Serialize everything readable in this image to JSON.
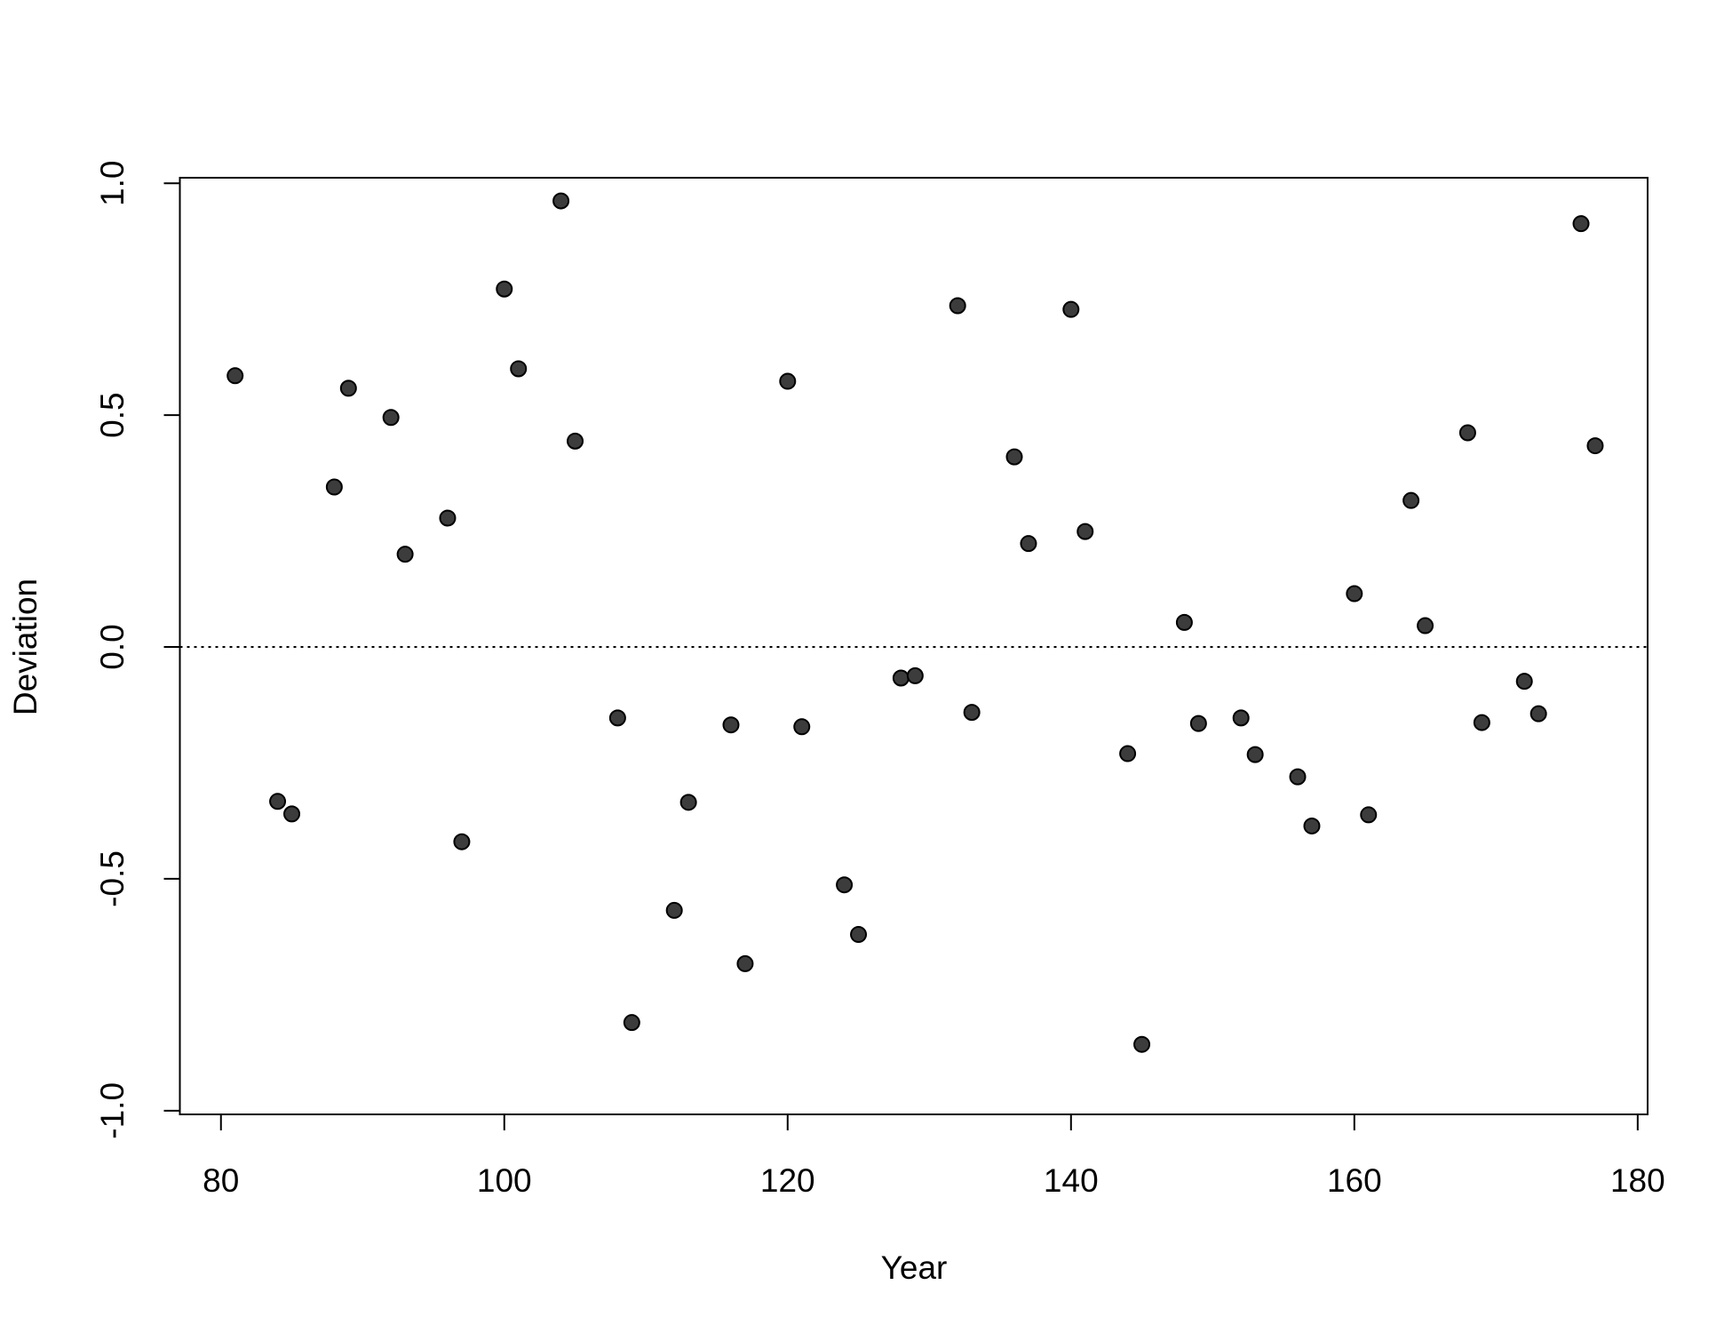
{
  "chart_data": {
    "type": "scatter",
    "x_label": "Year",
    "y_label": "Deviation",
    "x": [
      81,
      84,
      85,
      88,
      89,
      92,
      93,
      96,
      97,
      100,
      101,
      104,
      105,
      108,
      109,
      112,
      113,
      116,
      117,
      120,
      121,
      124,
      125,
      128,
      129,
      132,
      133,
      136,
      137,
      140,
      141,
      144,
      145,
      148,
      149,
      152,
      153,
      156,
      157,
      160,
      161,
      164,
      165,
      168,
      169,
      172,
      173,
      176,
      177
    ],
    "values": [
      0.585,
      -0.333,
      -0.36,
      0.345,
      0.558,
      0.495,
      0.2,
      0.278,
      -0.42,
      0.772,
      0.6,
      0.962,
      0.444,
      -0.153,
      -0.81,
      -0.568,
      -0.335,
      -0.168,
      -0.683,
      0.573,
      -0.172,
      -0.513,
      -0.62,
      -0.067,
      -0.062,
      0.736,
      -0.141,
      0.41,
      0.223,
      0.728,
      0.249,
      -0.23,
      -0.857,
      0.053,
      -0.165,
      -0.153,
      -0.232,
      -0.28,
      -0.386,
      0.115,
      -0.362,
      0.316,
      0.046,
      0.462,
      -0.163,
      -0.074,
      -0.144,
      0.913,
      0.434
    ],
    "color": "#3c3c3c",
    "reference_line": 0,
    "xlim": [
      77.1,
      180.7
    ],
    "ylim": [
      -1.008,
      1.012
    ],
    "xticks": [
      80,
      100,
      120,
      140,
      160,
      180
    ],
    "yticks": [
      {
        "value": -1,
        "label": "-1.0"
      },
      -0.5,
      {
        "value": 0,
        "label": "0.0"
      },
      0.5,
      {
        "value": 1,
        "label": "1.0"
      }
    ]
  }
}
